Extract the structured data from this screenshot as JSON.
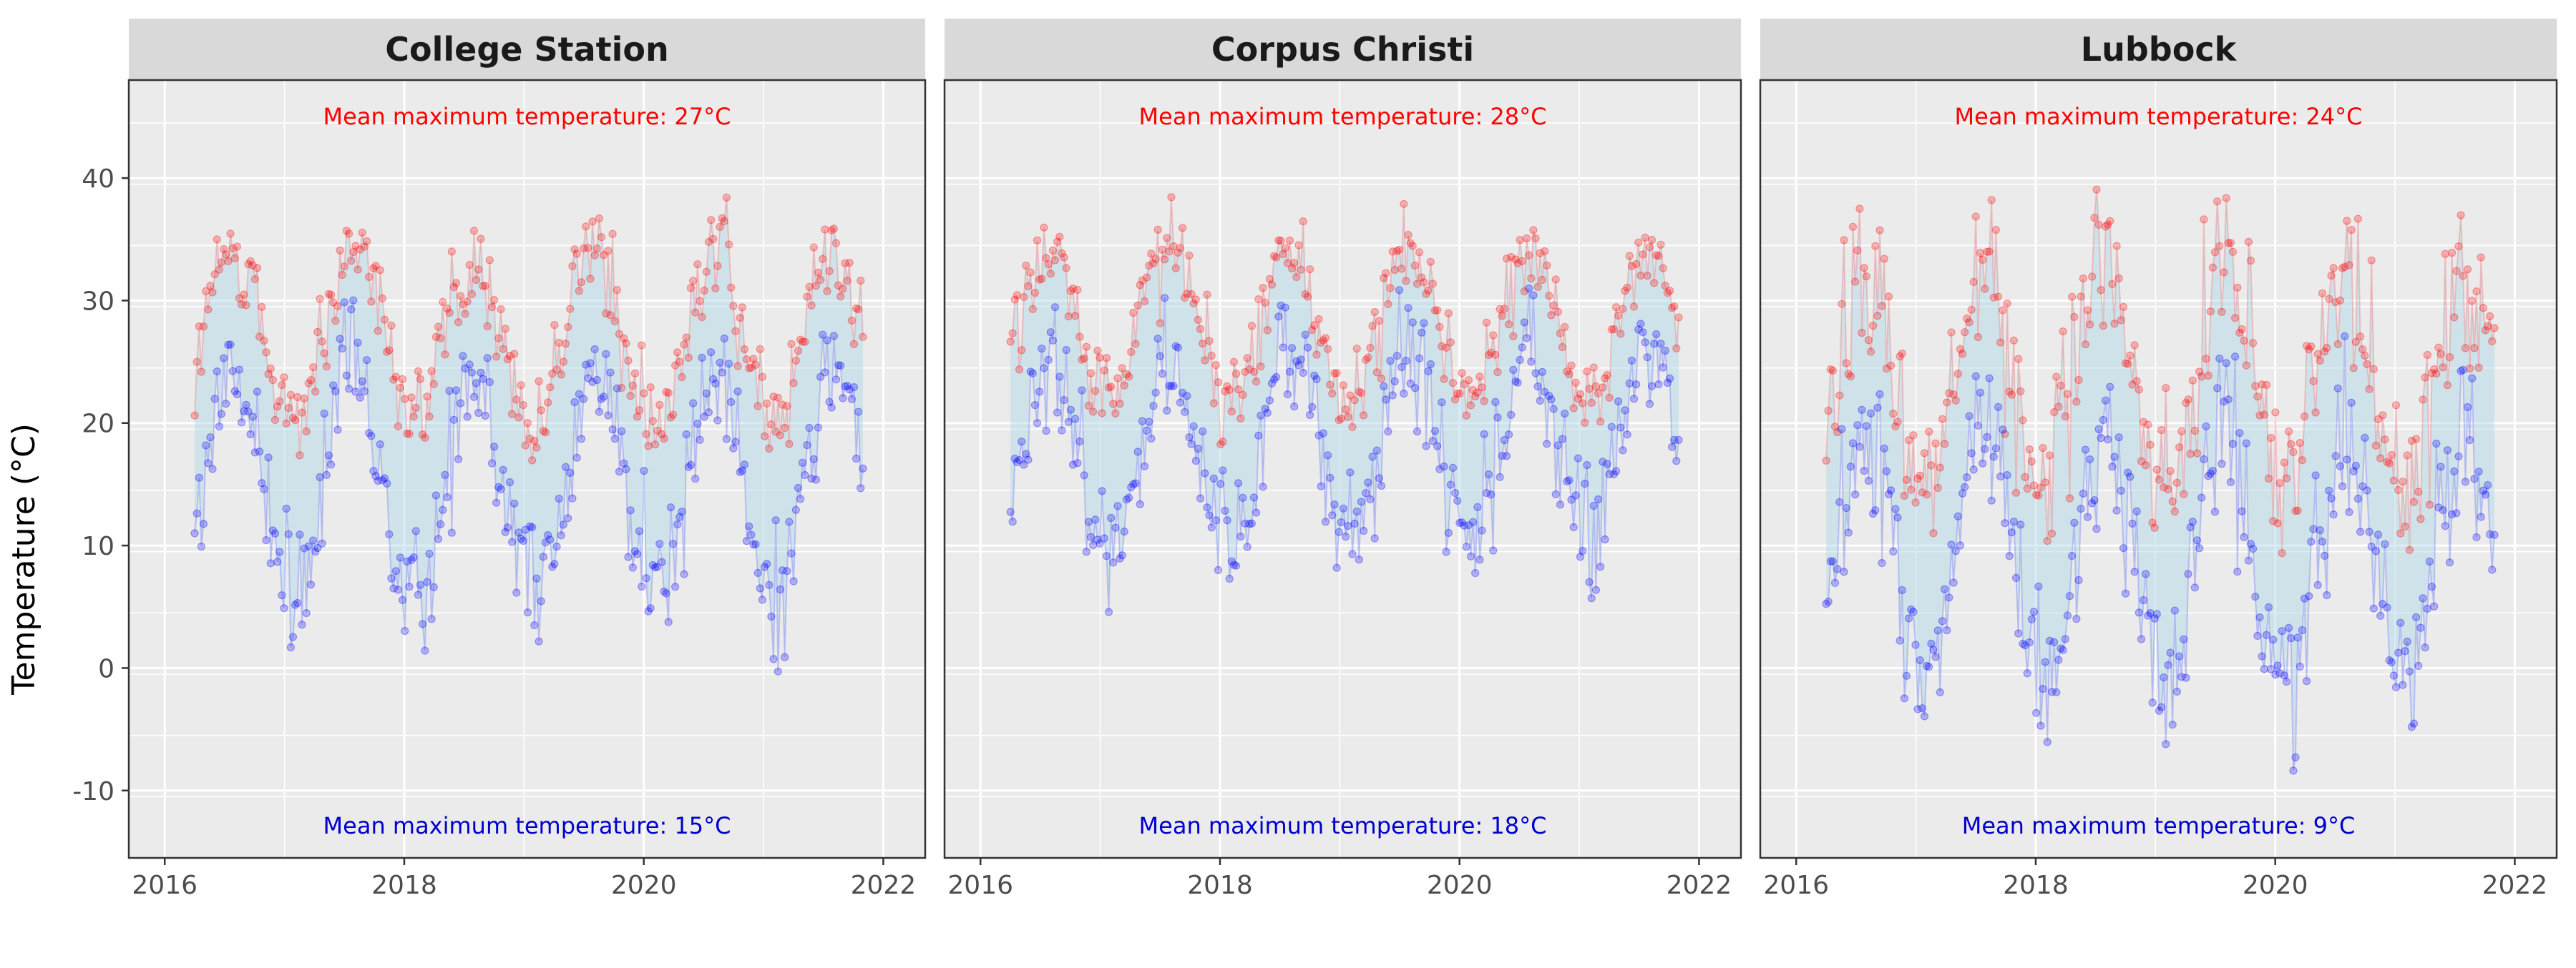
{
  "colors": {
    "max_series": "#ff0000",
    "min_series": "#0000ff",
    "band_fill": "#add8e6",
    "panel_bg": "#ebebeb",
    "strip_bg": "#d9d9d9",
    "grid": "#ffffff",
    "axis_text": "#4d4d4d"
  },
  "chart_data": {
    "type": "scatter",
    "facet_by": "station",
    "ylabel": "Temperature (°C)",
    "xlabel": "",
    "xlim": [
      2015.7,
      2022.35
    ],
    "ylim": [
      -15.5,
      48
    ],
    "x_ticks": [
      2016,
      2018,
      2020,
      2022
    ],
    "y_ticks": [
      -10,
      0,
      10,
      20,
      30,
      40
    ],
    "grid": true,
    "legend": "none",
    "x_range": [
      2016.25,
      2021.83
    ],
    "panels": [
      {
        "title": "College Station",
        "annotation_top": "Mean maximum temperature: 27°C",
        "annotation_bottom": "Mean maximum temperature: 15°C",
        "max_series": {
          "mean": 27,
          "amplitude": 7,
          "noise": 3.2,
          "x_range": [
            2016.25,
            2021.83
          ]
        },
        "min_series": {
          "mean": 15,
          "amplitude": 9,
          "noise": 4.2,
          "x_range": [
            2016.25,
            2021.83
          ]
        }
      },
      {
        "title": "Corpus Christi",
        "annotation_top": "Mean maximum temperature: 28°C",
        "annotation_bottom": "Mean maximum temperature: 18°C",
        "max_series": {
          "mean": 28,
          "amplitude": 6,
          "noise": 2.8,
          "x_range": [
            2016.25,
            2021.83
          ]
        },
        "min_series": {
          "mean": 18,
          "amplitude": 8,
          "noise": 3.8,
          "x_range": [
            2016.25,
            2021.83
          ]
        }
      },
      {
        "title": "Lubbock",
        "annotation_top": "Mean maximum temperature: 24°C",
        "annotation_bottom": "Mean maximum temperature: 9°C",
        "max_series": {
          "mean": 24,
          "amplitude": 9,
          "noise": 5.2,
          "x_range": [
            2016.25,
            2021.83
          ]
        },
        "min_series": {
          "mean": 9,
          "amplitude": 10,
          "noise": 4.6,
          "x_range": [
            2016.25,
            2021.83
          ]
        }
      }
    ]
  }
}
